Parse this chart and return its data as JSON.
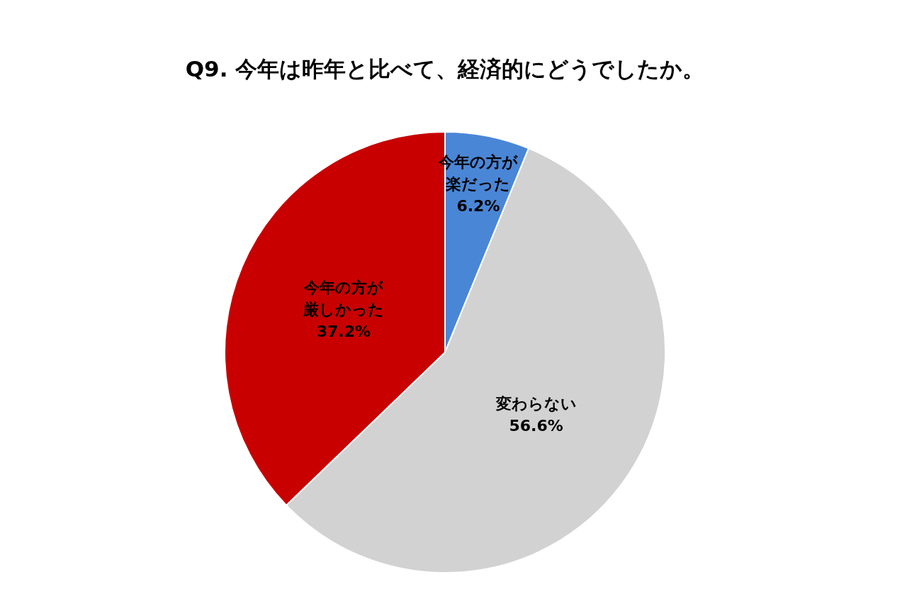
{
  "chart_data": {
    "type": "pie",
    "title": "Q9. 今年は昨年と比べて、経済的にどうでしたか。",
    "categories": [
      "今年の方が楽だった",
      "変わらない",
      "今年の方が厳しかった"
    ],
    "values": [
      6.2,
      56.6,
      37.2
    ],
    "colors": [
      "#4a86d6",
      "#d2d2d2",
      "#c80000"
    ],
    "value_labels": [
      "6.2%",
      "56.6%",
      "37.2%"
    ]
  }
}
